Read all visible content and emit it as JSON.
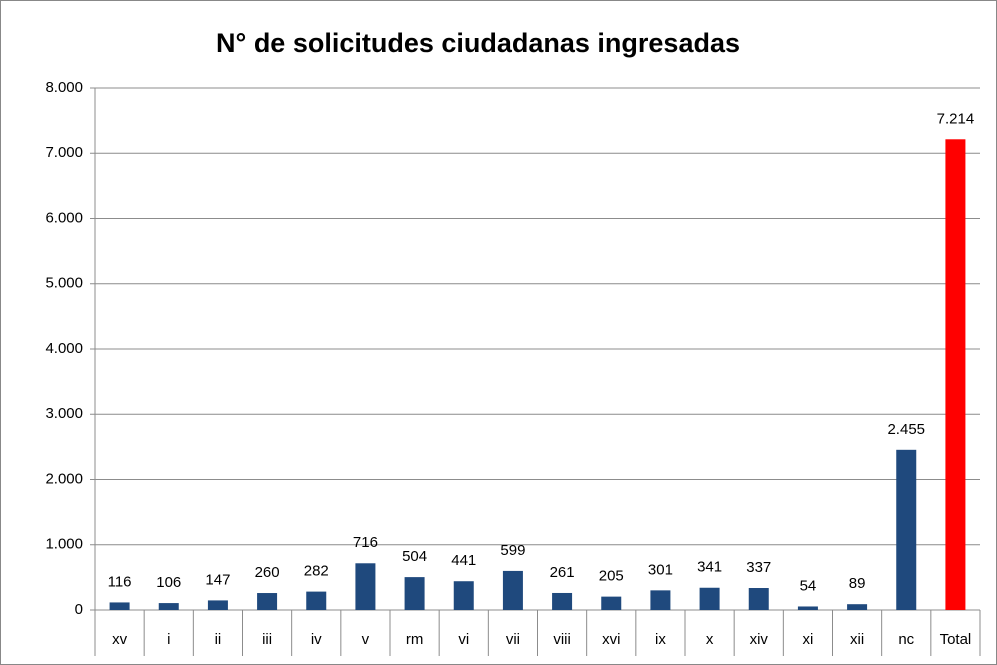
{
  "chart_data": {
    "type": "bar",
    "title": "N° de solicitudes ciudadanas ingresadas",
    "categories": [
      "xv",
      "i",
      "ii",
      "iii",
      "iv",
      "v",
      "rm",
      "vi",
      "vii",
      "viii",
      "xvi",
      "ix",
      "x",
      "xiv",
      "xi",
      "xii",
      "nc",
      "Total"
    ],
    "values": [
      116,
      106,
      147,
      260,
      282,
      716,
      504,
      441,
      599,
      261,
      205,
      301,
      341,
      337,
      54,
      89,
      2455,
      7214
    ],
    "value_labels": [
      "116",
      "106",
      "147",
      "260",
      "282",
      "716",
      "504",
      "441",
      "599",
      "261",
      "205",
      "301",
      "341",
      "337",
      "54",
      "89",
      "2.455",
      "7.214"
    ],
    "colors": [
      "#1f497d",
      "#1f497d",
      "#1f497d",
      "#1f497d",
      "#1f497d",
      "#1f497d",
      "#1f497d",
      "#1f497d",
      "#1f497d",
      "#1f497d",
      "#1f497d",
      "#1f497d",
      "#1f497d",
      "#1f497d",
      "#1f497d",
      "#1f497d",
      "#1f497d",
      "#ff0000"
    ],
    "ylim": [
      0,
      8000
    ],
    "yticks": [
      0,
      {
        "value": 1000,
        "label": "1.000"
      },
      {
        "value": 2000,
        "label": "2.000"
      },
      {
        "value": 3000,
        "label": "3.000"
      },
      {
        "value": 4000,
        "label": "4.000"
      },
      {
        "value": 5000,
        "label": "5.000"
      },
      {
        "value": 6000,
        "label": "6.000"
      },
      {
        "value": 7000,
        "label": "7.000"
      },
      {
        "value": 8000,
        "label": "8.000"
      }
    ],
    "grid": true
  }
}
